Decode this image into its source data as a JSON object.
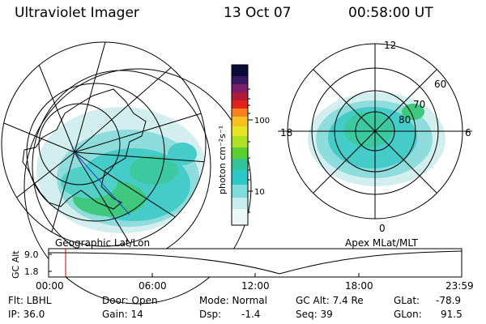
{
  "header": {
    "title": "Ultraviolet Imager",
    "date": "13 Oct 07",
    "time": "00:58:00 UT"
  },
  "colorbar": {
    "unit_label": "photon cm⁻²s⁻¹",
    "ticks": [
      "100",
      "10"
    ],
    "colors": [
      "#0b0b3a",
      "#3a1760",
      "#7a1d6a",
      "#b01a3a",
      "#e3231b",
      "#f6821f",
      "#f7c221",
      "#e8e323",
      "#aee026",
      "#5bcf2d",
      "#33c59a",
      "#2cc7c8",
      "#7fdcdc",
      "#c7ecec",
      "#eef7f7"
    ]
  },
  "left_panel": {
    "label": "Geographic Lat/Lon"
  },
  "right_panel": {
    "label": "Apex MLat/MLT",
    "mlt_labels": [
      "12",
      "18",
      "6",
      "0"
    ],
    "lat_labels": [
      "60",
      "70",
      "80"
    ]
  },
  "altitude_plot": {
    "ylabel": "GC Alt",
    "yticks": [
      "9.0",
      "1.8"
    ],
    "xticks": [
      "00:00",
      "06:00",
      "12:00",
      "18:00",
      "23:59"
    ],
    "marker_color": "#cc0000"
  },
  "footer": {
    "flt": "Flt: LBHL",
    "door": "Door: Open",
    "mode": "Mode: Normal",
    "gc_alt": "GC Alt: 7.4 Re",
    "glat_label": "GLat:",
    "glat_value": "-78.9",
    "ip": "IP: 36.0",
    "gain": "Gain: 14",
    "dsp_label": "Dsp:",
    "dsp_value": "-1.4",
    "seq": "Seq: 39",
    "glon_label": "GLon:",
    "glon_value": "91.5"
  }
}
